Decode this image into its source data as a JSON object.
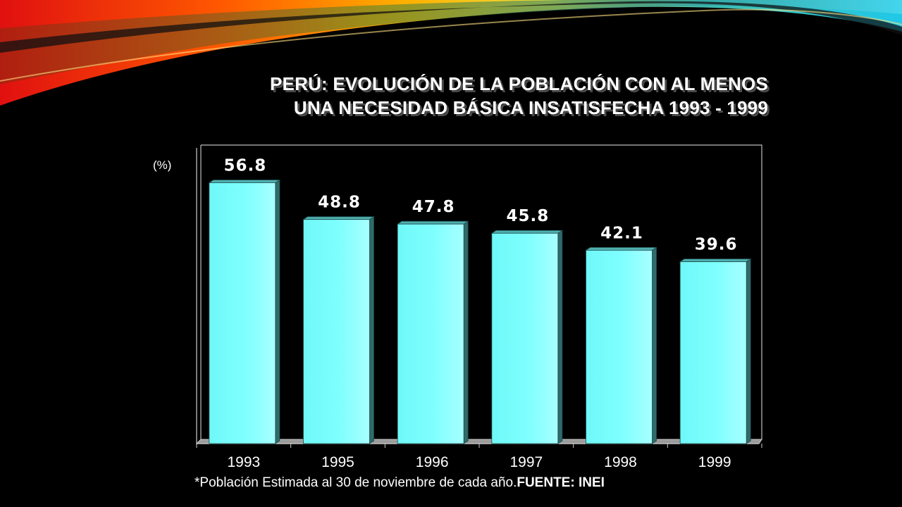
{
  "slide": {
    "title_line1": "PERÚ: EVOLUCIÓN DE LA POBLACIÓN CON AL MENOS",
    "title_line2": "UNA NECESIDAD BÁSICA INSATISFECHA 1993 - 1999",
    "footnote": "*Población Estimada al 30 de noviembre de cada año.",
    "source": "FUENTE: INEI"
  },
  "chart_data": {
    "type": "bar",
    "title": "PERÚ: EVOLUCIÓN DE LA POBLACIÓN CON AL MENOS UNA NECESIDAD BÁSICA INSATISFECHA 1993 - 1999",
    "xlabel": "",
    "ylabel": "(%)",
    "categories": [
      "1993",
      "1995",
      "1996",
      "1997",
      "1998",
      "1999"
    ],
    "values": [
      56.8,
      48.8,
      47.8,
      45.8,
      42.1,
      39.6
    ],
    "value_labels": [
      "56.8",
      "48.8",
      "47.8",
      "45.8",
      "42.1",
      "39.6"
    ],
    "ylim": [
      0,
      65
    ],
    "grid": false,
    "legend": "none",
    "bar_color": "#7fffff",
    "bar_side_color": "#2f6b6b",
    "background": "#000000"
  }
}
